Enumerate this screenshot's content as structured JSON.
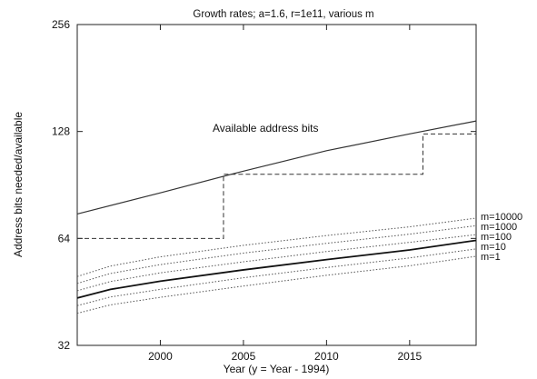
{
  "chart_data": {
    "type": "line",
    "title": "Growth rates; a=1.6, r=1e11, various m",
    "xlabel": "Year (y = Year - 1994)",
    "ylabel": "Address bits needed/available",
    "xlim": [
      1995,
      2019
    ],
    "ylim": [
      32,
      256
    ],
    "y_scale": "log2",
    "x_ticks": [
      2000,
      2005,
      2010,
      2015
    ],
    "y_ticks": [
      32,
      64,
      128,
      256
    ],
    "annotation": "Available address bits",
    "series": [
      {
        "name": "Available address bits",
        "style": "solid-thin",
        "x": [
          1995,
          2000,
          2005,
          2010,
          2015,
          2019
        ],
        "y": [
          75,
          86,
          99,
          113,
          126,
          137
        ]
      },
      {
        "name": "",
        "style": "dashed-step",
        "x": [
          1995,
          2003.8,
          2003.8,
          2015.8,
          2015.8,
          2019
        ],
        "y": [
          64,
          64,
          97,
          97,
          126,
          126
        ]
      },
      {
        "name": "m=10000",
        "style": "dotted",
        "x": [
          1995,
          1997,
          2000,
          2005,
          2010,
          2015,
          2019
        ],
        "y": [
          50,
          53.5,
          56.8,
          61.2,
          65.2,
          69,
          73
        ]
      },
      {
        "name": "m=1000",
        "style": "dotted",
        "x": [
          1995,
          1997,
          2000,
          2005,
          2010,
          2015,
          2019
        ],
        "y": [
          47.8,
          51,
          54,
          58.2,
          62,
          65.8,
          69.5
        ]
      },
      {
        "name": "m=100",
        "style": "dotted",
        "x": [
          1995,
          1997,
          2000,
          2005,
          2010,
          2015,
          2019
        ],
        "y": [
          45.6,
          48.4,
          51.2,
          55,
          58.8,
          62.4,
          65.6
        ]
      },
      {
        "name": "m=10",
        "style": "solid-thick",
        "x": [
          1995,
          1997,
          2000,
          2005,
          2010,
          2015,
          2019
        ],
        "y": [
          43.5,
          46,
          48.5,
          52.2,
          55.8,
          59.4,
          63.2
        ]
      },
      {
        "name": "m=1",
        "style": "dotted",
        "x": [
          1995,
          1997,
          2000,
          2005,
          2010,
          2015,
          2019
        ],
        "y": [
          41.4,
          43.8,
          46,
          49.6,
          53,
          56.4,
          59.8
        ]
      },
      {
        "name": "",
        "style": "dotted",
        "x": [
          1995,
          1997,
          2000,
          2005,
          2010,
          2015,
          2019
        ],
        "y": [
          39.4,
          41.6,
          43.7,
          47,
          50.4,
          53.6,
          57
        ]
      }
    ],
    "legend_labels": [
      "m=10000",
      "m=1000",
      "m=100",
      "m=10",
      "m=1"
    ]
  }
}
